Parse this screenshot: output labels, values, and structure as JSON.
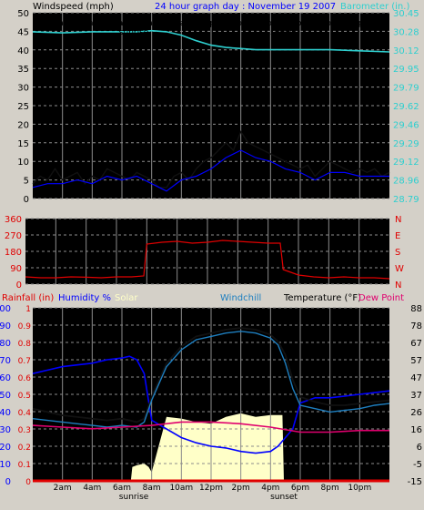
{
  "colors": {
    "background": "#d4d0c8",
    "plot_bg": "#000000",
    "grid": "#8c8c8c",
    "axis_text": "#000000",
    "windspeed": "#000000",
    "gust": "#ffffff",
    "avg_wind": "#0000ff",
    "barometer": "#2ecfcf",
    "wind_dir": "#e00000",
    "rainfall": "#e00000",
    "humidity": "#0000ff",
    "solar": "#ffffc8",
    "windchill": "#1e7fc0",
    "temperature": "#000000",
    "dewpoint": "#e0006e",
    "title": "#0000ff"
  },
  "chart_data": [
    {
      "type": "line",
      "title": "24 hour graph day : November 19 2007",
      "ylabel": "Windspeed (mph)",
      "y2label": "Barometer (in.)",
      "ylim": [
        0,
        50
      ],
      "y2lim": [
        28.79,
        30.45
      ],
      "yticks": [
        "0",
        "5",
        "10",
        "15",
        "20",
        "25",
        "30",
        "35",
        "40",
        "45",
        "50"
      ],
      "y2ticks": [
        "28.79",
        "28.96",
        "29.12",
        "29.29",
        "29.46",
        "29.62",
        "29.79",
        "29.95",
        "30.12",
        "30.28",
        "30.45"
      ],
      "xticks": [
        "2am",
        "4am",
        "6am",
        "8am",
        "10am",
        "12pm",
        "2pm",
        "4pm",
        "6pm",
        "8pm",
        "10pm"
      ],
      "xlim": [
        0,
        24
      ],
      "annotations": [
        "sunrise",
        "sunset"
      ],
      "sunrise_hour": 6.8,
      "sunset_hour": 16.9,
      "series": [
        {
          "role": "windspeed",
          "x": [
            0,
            0.5,
            1,
            1.5,
            2,
            2.5,
            3,
            3.5,
            4,
            4.5,
            5,
            5.5,
            6,
            6.5,
            7,
            7.5,
            8,
            8.5,
            9,
            9.5,
            10,
            10.5,
            11,
            11.5,
            12,
            12.5,
            13,
            13.5,
            14,
            14.5,
            15,
            15.5,
            16,
            16.5,
            17,
            17.5,
            18,
            18.5,
            19,
            19.5,
            20,
            20.5,
            21,
            21.5,
            22,
            22.5,
            23,
            23.5,
            24
          ],
          "y": [
            4,
            6,
            5,
            8,
            5,
            6,
            7,
            4,
            6,
            5,
            8,
            7,
            6,
            5,
            7,
            6,
            5,
            3,
            3,
            6,
            7,
            5,
            8,
            10,
            11,
            13,
            15,
            13,
            18,
            15,
            14,
            13,
            12,
            11,
            10,
            9,
            8,
            9,
            6,
            8,
            10,
            9,
            8,
            7,
            8,
            7,
            8,
            6,
            7
          ]
        },
        {
          "role": "avg_wind",
          "x": [
            0,
            1,
            2,
            3,
            4,
            5,
            6,
            7,
            8,
            9,
            10,
            11,
            12,
            13,
            14,
            15,
            16,
            17,
            18,
            19,
            20,
            21,
            22,
            23,
            24
          ],
          "y": [
            3,
            4,
            4,
            5,
            4,
            6,
            5,
            6,
            4,
            2,
            5,
            6,
            8,
            11,
            13,
            11,
            10,
            8,
            7,
            5,
            7,
            7,
            6,
            6,
            6
          ]
        },
        {
          "role": "barometer",
          "x": [
            0,
            2,
            4,
            6,
            7,
            8,
            9,
            10,
            11,
            12,
            13,
            14,
            15,
            16,
            17,
            18,
            20,
            22,
            24
          ],
          "y": [
            30.28,
            30.27,
            30.28,
            30.28,
            30.28,
            30.29,
            30.28,
            30.25,
            30.2,
            30.16,
            30.14,
            30.13,
            30.12,
            30.12,
            30.12,
            30.12,
            30.12,
            30.11,
            30.1
          ]
        }
      ]
    },
    {
      "type": "line",
      "ylabel": "Wind direction",
      "ylim": [
        0,
        360
      ],
      "yticks": [
        "0",
        "90",
        "180",
        "270",
        "360"
      ],
      "y2ticks": [
        "N",
        "E",
        "S",
        "W",
        "N"
      ],
      "series": [
        {
          "role": "wind_dir",
          "x": [
            0,
            1,
            2,
            3,
            4,
            5,
            6,
            7,
            7.8,
            8,
            9,
            10,
            11,
            12,
            13,
            14,
            15,
            16,
            16.8,
            17,
            18,
            19,
            20,
            21,
            22,
            23,
            24
          ],
          "y": [
            40,
            35,
            35,
            40,
            38,
            35,
            40,
            40,
            45,
            220,
            230,
            235,
            225,
            230,
            240,
            235,
            230,
            225,
            225,
            80,
            50,
            40,
            35,
            40,
            35,
            35,
            30
          ]
        }
      ]
    },
    {
      "type": "line",
      "legend": [
        "Rainfall (in)",
        "Humidity %",
        "Solar",
        "Windchill",
        "Temperature (°F)",
        "Dew Point"
      ],
      "ylim_left_rain": [
        0,
        1
      ],
      "yticks_rain": [
        "0",
        "0.1",
        "0.2",
        "0.3",
        "0.4",
        "0.5",
        "0.6",
        "0.7",
        "0.8",
        "0.9",
        "1"
      ],
      "ylim_left_humidity": [
        0,
        100
      ],
      "yticks_humidity": [
        "0",
        "10",
        "20",
        "30",
        "40",
        "50",
        "60",
        "70",
        "80",
        "90",
        "100"
      ],
      "ylim_right": [
        -15,
        88
      ],
      "yticks_right": [
        "-15",
        "-5",
        "6",
        "16",
        "26",
        "37",
        "47",
        "57",
        "67",
        "78",
        "88"
      ],
      "annotations": [
        "sunrise",
        "sunset"
      ],
      "series": [
        {
          "role": "humidity",
          "x": [
            0,
            1,
            2,
            3,
            4,
            5,
            6,
            6.5,
            7,
            7.5,
            8,
            9,
            10,
            11,
            12,
            13,
            14,
            15,
            16,
            16.5,
            17,
            17.5,
            18,
            19,
            20,
            21,
            22,
            23,
            24
          ],
          "y": [
            62,
            64,
            66,
            67,
            68,
            70,
            71,
            72,
            70,
            62,
            35,
            30,
            25,
            22,
            20,
            19,
            17,
            16,
            17,
            20,
            25,
            30,
            45,
            48,
            48,
            49,
            50,
            51,
            52
          ]
        },
        {
          "role": "temperature",
          "x": [
            0,
            1,
            2,
            3,
            4,
            5,
            6,
            7,
            7.5,
            8,
            9,
            10,
            11,
            12,
            13,
            14,
            15,
            16,
            16.5,
            17,
            17.5,
            18,
            19,
            20,
            21,
            22,
            23,
            24
          ],
          "y": [
            28,
            26,
            24,
            23,
            22,
            21,
            22,
            20,
            22,
            35,
            55,
            65,
            71,
            73,
            75,
            76,
            75,
            72,
            68,
            60,
            45,
            35,
            32,
            30,
            30,
            31,
            32,
            33
          ]
        },
        {
          "role": "windchill",
          "x": [
            0,
            1,
            2,
            3,
            4,
            5,
            6,
            7,
            7.5,
            8,
            9,
            10,
            11,
            12,
            13,
            14,
            15,
            16,
            16.5,
            17,
            17.5,
            18,
            19,
            20,
            21,
            22,
            23,
            24
          ],
          "y": [
            22,
            21,
            20,
            19,
            18,
            17,
            18,
            17,
            20,
            33,
            53,
            63,
            69,
            71,
            73,
            74,
            73,
            70,
            66,
            55,
            40,
            30,
            28,
            26,
            27,
            28,
            30,
            31
          ]
        },
        {
          "role": "dewpoint",
          "x": [
            0,
            2,
            4,
            6,
            8,
            10,
            12,
            14,
            16,
            18,
            20,
            22,
            24
          ],
          "y": [
            18,
            17,
            16,
            17,
            18,
            20,
            20,
            19,
            17,
            14,
            14,
            15,
            15
          ]
        },
        {
          "role": "solar",
          "x": [
            6.6,
            6.7,
            7.0,
            7.5,
            7.8,
            8.0,
            9,
            10,
            11,
            12,
            13,
            14,
            15,
            16,
            16.8,
            16.9
          ],
          "y": [
            0,
            0.08,
            0.09,
            0.1,
            0.08,
            0.05,
            0.37,
            0.36,
            0.34,
            0.33,
            0.37,
            0.39,
            0.37,
            0.38,
            0.38,
            0
          ]
        },
        {
          "role": "rainfall",
          "x": [
            0,
            24
          ],
          "y": [
            0,
            0
          ]
        }
      ]
    }
  ]
}
